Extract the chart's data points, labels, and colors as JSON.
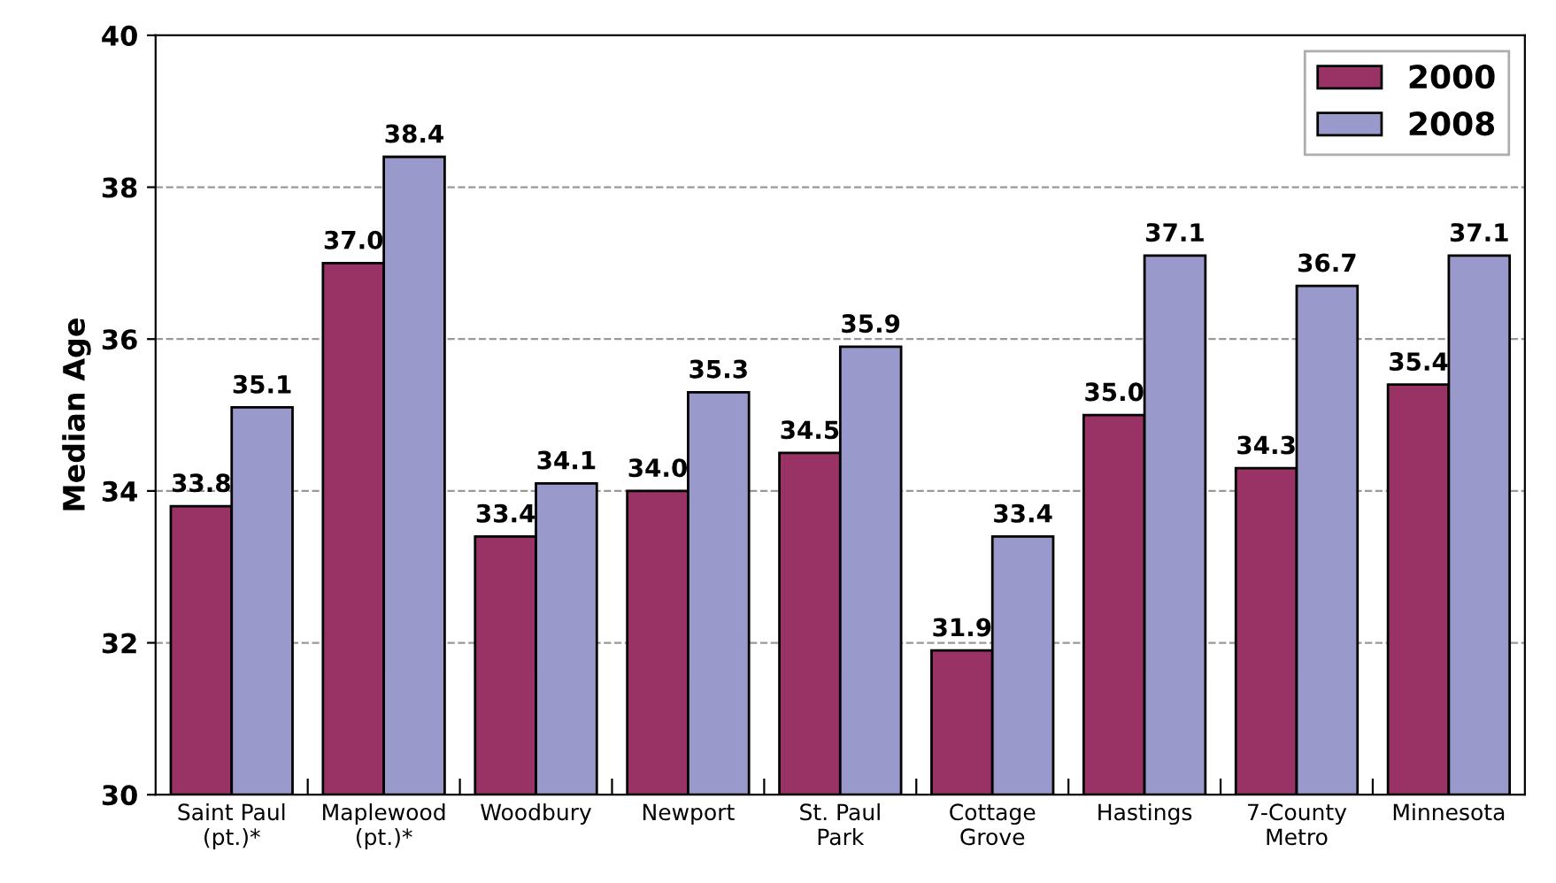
{
  "chart_data": {
    "type": "bar",
    "ylabel": "Median Age",
    "categories": [
      "Saint Paul\n(pt.)*",
      "Maplewood\n(pt.)*",
      "Woodbury",
      "Newport",
      "St. Paul\nPark",
      "Cottage\nGrove",
      "Hastings",
      "7-County\nMetro",
      "Minnesota"
    ],
    "series": [
      {
        "name": "2000",
        "color": "#993366",
        "values": [
          33.8,
          37.0,
          33.4,
          34.0,
          34.5,
          31.9,
          35.0,
          34.3,
          35.4
        ],
        "value_labels": [
          "33.8",
          "37.0",
          "33.4",
          "34.0",
          "34.5",
          "31.9",
          "35.0",
          "34.3",
          "35.4"
        ]
      },
      {
        "name": "2008",
        "color": "#9999cc",
        "values": [
          35.1,
          38.4,
          34.1,
          35.3,
          35.9,
          33.4,
          37.1,
          36.7,
          37.1
        ],
        "value_labels": [
          "35.1",
          "38.4",
          "34.1",
          "35.3",
          "35.9",
          "33.4",
          "37.1",
          "36.7",
          "37.1"
        ]
      }
    ],
    "ylim": [
      30,
      40
    ],
    "yticks": [
      30,
      32,
      34,
      36,
      38,
      40
    ],
    "grid": "y",
    "legend": "top right"
  }
}
